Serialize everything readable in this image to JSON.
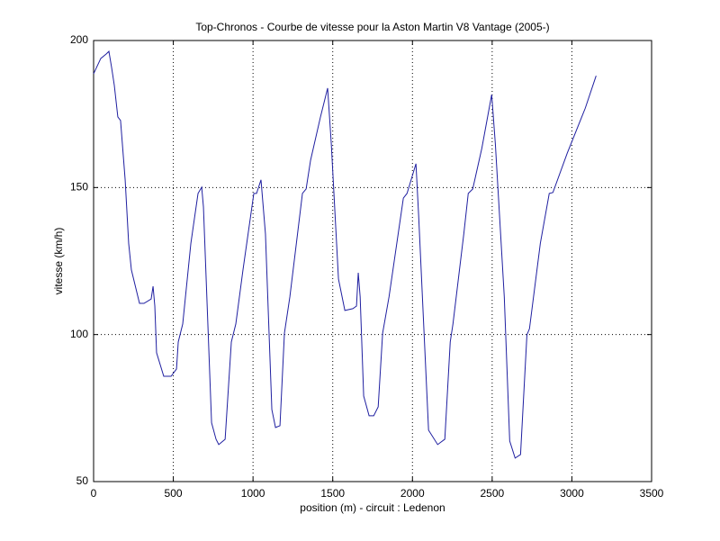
{
  "chart_data": {
    "type": "line",
    "title": "Top-Chronos - Courbe de vitesse pour la Aston Martin V8 Vantage (2005-)",
    "x_label": "position (m) - circuit : Ledenon",
    "y_label": "vitesse (km/h)",
    "x": [
      0,
      45,
      79,
      96,
      113,
      130,
      152,
      169,
      198,
      220,
      237,
      288,
      316,
      361,
      373,
      384,
      395,
      440,
      486,
      520,
      531,
      559,
      610,
      655,
      678,
      689,
      740,
      768,
      785,
      825,
      864,
      892,
      937,
      1005,
      1022,
      1050,
      1078,
      1118,
      1141,
      1169,
      1197,
      1231,
      1310,
      1333,
      1361,
      1423,
      1468,
      1491,
      1536,
      1576,
      1626,
      1649,
      1660,
      1672,
      1694,
      1728,
      1757,
      1785,
      1813,
      1853,
      1943,
      1966,
      2022,
      2039,
      2101,
      2158,
      2203,
      2237,
      2254,
      2322,
      2350,
      2378,
      2435,
      2497,
      2520,
      2576,
      2610,
      2644,
      2678,
      2718,
      2734,
      2802,
      2858,
      2881,
      2971,
      3084,
      3152
    ],
    "series": [
      {
        "name": "vitesse",
        "color": "#1f1fa0",
        "values": [
          188.7,
          193.9,
          195.4,
          196.3,
          190.8,
          184.7,
          174,
          172.8,
          152.6,
          131,
          122,
          110.6,
          110.6,
          112.1,
          116.4,
          109.7,
          93.8,
          85.8,
          85.8,
          88.3,
          97.5,
          103.6,
          131,
          148,
          150.1,
          143.4,
          70,
          64.4,
          62.6,
          64.4,
          97.5,
          103.6,
          122,
          148,
          148,
          152.6,
          134.2,
          74.5,
          68.4,
          69,
          100.5,
          112.8,
          148,
          149.5,
          159.3,
          174,
          183.8,
          164.8,
          118.9,
          108.2,
          108.8,
          109.7,
          121,
          112.8,
          79.1,
          72.4,
          72.4,
          75.4,
          100.5,
          112.8,
          146.4,
          148,
          158.1,
          140.3,
          67.5,
          62.6,
          64.4,
          97.5,
          103.6,
          134.2,
          148,
          149.5,
          163.3,
          181.6,
          164.8,
          112.8,
          63.8,
          58,
          59.2,
          99.9,
          102,
          131,
          148,
          148.3,
          161.7,
          177,
          188
        ]
      }
    ],
    "xlim": [
      0,
      3500
    ],
    "xticks": [
      0,
      500,
      1000,
      1500,
      2000,
      2500,
      3000,
      3500
    ],
    "ylim": [
      50,
      200
    ],
    "yticks": [
      50,
      100,
      150,
      200
    ],
    "grid": true
  }
}
